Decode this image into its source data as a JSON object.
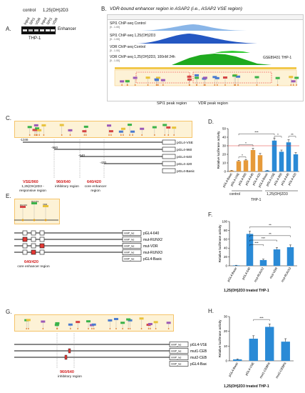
{
  "panelA": {
    "label": "A.",
    "group_control": "control",
    "group_treat": "1,25(OH)2D3",
    "lanes": [
      "Input",
      "SPI1",
      "VDR",
      "Input",
      "SPI1",
      "VDR"
    ],
    "side_label": "Enhancer",
    "cell": "THP-1"
  },
  "panelB": {
    "label": "B.",
    "title": "VDR-bound enhancer region in ASAP2 (i.e., ASAP2 VSE region)",
    "tracks": [
      "SPI1 ChIP-seq Control",
      "SPI1 ChIP-seq 1,25(OH)2D3",
      "VDR ChIP-seq Control",
      "VDR ChIP-seq 1,25(OH)2D3, 100nM 24h"
    ],
    "scale_labels": [
      "[0 - 1.00]",
      "[0 - 1.00]",
      "[0 - 1.00]",
      "[0 - 1.00]"
    ],
    "dataset": "GSE89431 THP-1",
    "region1": "SPI1 peak region",
    "region2": "VDR peak region"
  },
  "panelC": {
    "label": "C.",
    "coords": [
      "-1346",
      "-960",
      "-640",
      "-420"
    ],
    "constructs": [
      "pGL4-VSE",
      "pGL4-960",
      "pGL4-640",
      "pGL4-420",
      "pGL4-Basic"
    ],
    "regions": [
      {
        "name": "VSE/960",
        "desc": "1,25(OH)2D3 -responsive region"
      },
      {
        "name": "960/640",
        "desc": "inhibitory region"
      },
      {
        "name": "640/420",
        "desc": "core enhancer region"
      }
    ]
  },
  "panelD": {
    "label": "D.",
    "group1": "control",
    "group2": "1,25(OH)2D3",
    "cell": "THP-1",
    "sig": [
      "*",
      "*",
      "***",
      "*",
      "**"
    ]
  },
  "panelE": {
    "label": "E.",
    "box_labels": [
      "RUNX2",
      "RUNX3",
      "VDR"
    ],
    "constructs": [
      "pGL4-640",
      "mut-RUNX2",
      "mut-VDR",
      "mut-RUNX3",
      "pGL4-Basic"
    ],
    "promoter": "minP_luc",
    "region_name": "640/420",
    "region_desc": "core enhancer region"
  },
  "panelF": {
    "label": "F.",
    "caption": "1,25(OH)2D3 treated THP-1",
    "sig": [
      "***",
      "***",
      "**",
      "**"
    ]
  },
  "panelG": {
    "label": "G.",
    "constructs": [
      "pGL4-VSE",
      "mut1-CEBPA",
      "mut2-CEBPA",
      "pGL4-Basic"
    ],
    "promoter": "minP_luc",
    "region_name": "960/640",
    "region_desc": "inhibitory region"
  },
  "panelH": {
    "label": "H.",
    "caption": "1,25(OH)2D3 treated THP-1",
    "sig": [
      "***"
    ]
  },
  "chart_data": [
    {
      "type": "bar",
      "panel": "D",
      "ylabel": "Relative luciferase activity",
      "ylim": [
        0,
        50
      ],
      "categories": [
        "pGL4-Basic",
        "pGL4-VSE",
        "pGL4-960",
        "pGL4-640",
        "pGL4-420",
        "pGL4-Basic",
        "pGL4-VSE",
        "pGL4-960",
        "pGL4-640",
        "pGL4-420"
      ],
      "values": [
        1,
        12,
        13,
        25,
        19,
        1,
        36,
        23,
        34,
        20
      ],
      "errors": [
        0.3,
        1,
        1,
        2,
        2,
        0.3,
        3,
        2,
        3,
        2
      ],
      "colors": [
        "#e69a3a",
        "#e69a3a",
        "#e69a3a",
        "#e69a3a",
        "#e69a3a",
        "#2a8ad6",
        "#2a8ad6",
        "#2a8ad6",
        "#2a8ad6",
        "#2a8ad6"
      ]
    },
    {
      "type": "bar",
      "panel": "F",
      "ylabel": "Relative luciferase activity",
      "ylim": [
        0,
        100
      ],
      "categories": [
        "pGL4-Basic",
        "pGL4-640",
        "mut-RUNX2",
        "mut-VDR",
        "mut-RUNX3"
      ],
      "values": [
        1,
        72,
        13,
        37,
        42
      ],
      "errors": [
        0.3,
        6,
        2,
        4,
        5
      ]
    },
    {
      "type": "bar",
      "panel": "H",
      "ylabel": "Relative luciferase activity",
      "ylim": [
        0,
        30
      ],
      "categories": [
        "pGL4-Basic",
        "pGL4-VSE",
        "mut1-CEBPA",
        "mut2-CEBPA"
      ],
      "values": [
        1,
        15,
        23,
        13
      ],
      "errors": [
        0.3,
        2,
        2,
        2
      ]
    }
  ]
}
